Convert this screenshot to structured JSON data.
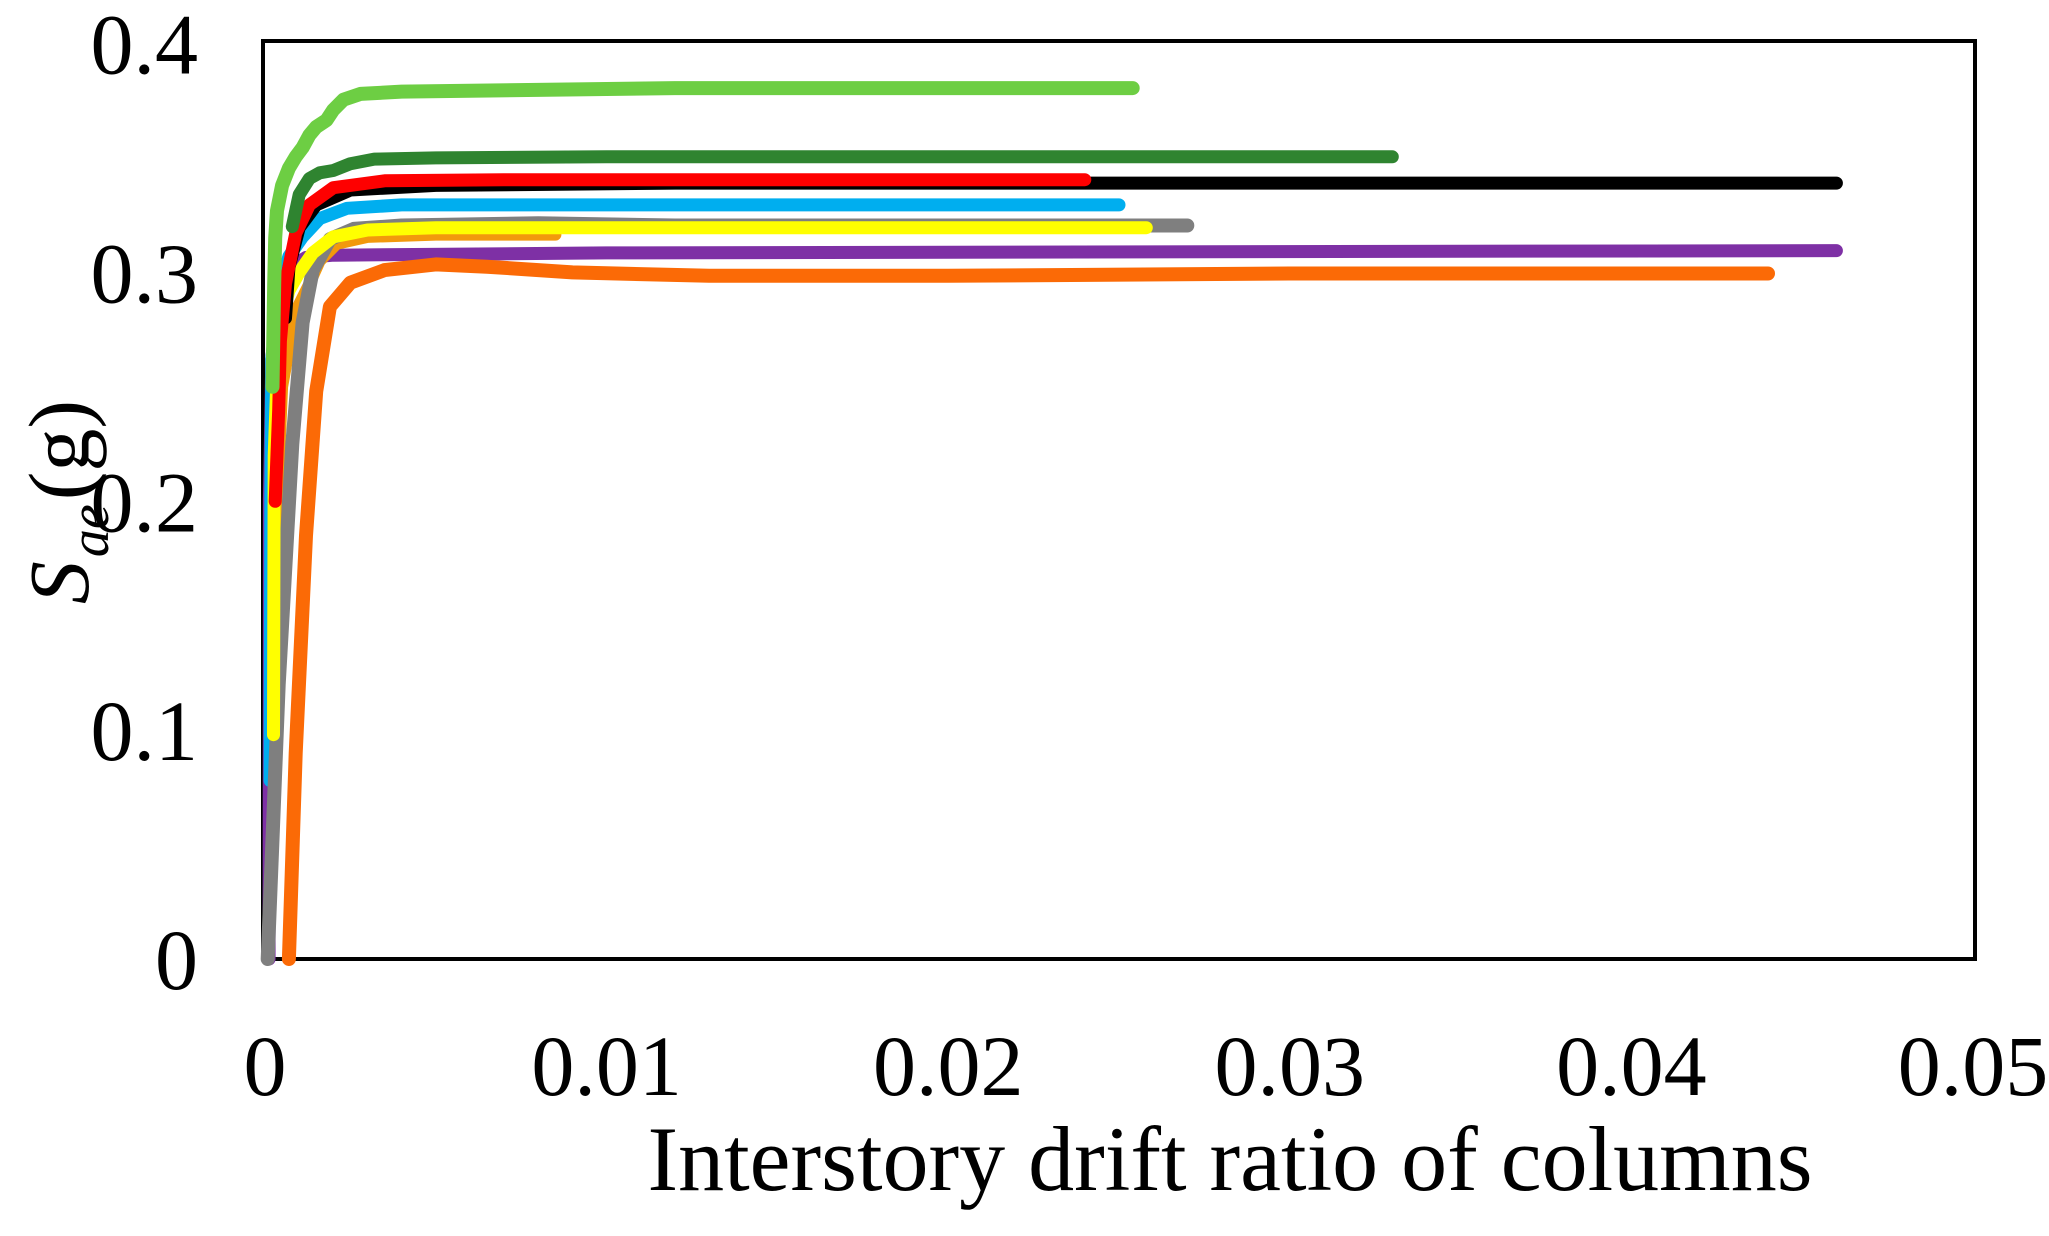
{
  "chart_data": {
    "type": "line",
    "title": "",
    "xlabel": "Interstory drift ratio of columns",
    "ylabel_main": "S",
    "ylabel_sub": "ae",
    "ylabel_unit": " (g)",
    "xlim": [
      0,
      0.05
    ],
    "ylim": [
      0,
      0.4
    ],
    "x_ticks": [
      "0",
      "0.01",
      "0.02",
      "0.03",
      "0.04",
      "0.05"
    ],
    "x_tick_values": [
      0,
      0.01,
      0.02,
      0.03,
      0.04,
      0.05
    ],
    "y_ticks": [
      "0",
      "0.1",
      "0.2",
      "0.3",
      "0.4"
    ],
    "y_tick_values": [
      0,
      0.1,
      0.2,
      0.3,
      0.4
    ],
    "grid": false,
    "legend": "none",
    "axis_color": "#000000",
    "series": [
      {
        "name": "purple",
        "color": "#7E30A5",
        "width": 13,
        "plateau": 0.309,
        "x_end": 0.046,
        "points": [
          [
            0.00012,
            0
          ],
          [
            0.00013,
            0.2
          ],
          [
            0.0002,
            0.262
          ],
          [
            0.0004,
            0.292
          ],
          [
            0.0007,
            0.302
          ],
          [
            0.0012,
            0.3065
          ],
          [
            0.002,
            0.3075
          ],
          [
            0.01,
            0.3085
          ],
          [
            0.046,
            0.3095
          ]
        ]
      },
      {
        "name": "cyan",
        "color": "#00AEEF",
        "width": 13,
        "plateau": 0.3295,
        "x_end": 0.025,
        "points": [
          [
            0.00015,
            0.078
          ],
          [
            0.00017,
            0.2
          ],
          [
            0.0002,
            0.262
          ],
          [
            0.0004,
            0.292
          ],
          [
            0.0007,
            0.307
          ],
          [
            0.0011,
            0.3155
          ],
          [
            0.0016,
            0.3235
          ],
          [
            0.0024,
            0.328
          ],
          [
            0.004,
            0.3295
          ],
          [
            0.025,
            0.3295
          ]
        ]
      },
      {
        "name": "gold",
        "color": "#F2990D",
        "width": 12,
        "plateau": 0.3165,
        "x_end": 0.0085,
        "points": [
          [
            0.0003,
            0.18
          ],
          [
            0.0005,
            0.25
          ],
          [
            0.0009,
            0.283
          ],
          [
            0.0013,
            0.295
          ],
          [
            0.0016,
            0.305
          ],
          [
            0.0021,
            0.3125
          ],
          [
            0.003,
            0.3155
          ],
          [
            0.005,
            0.3165
          ],
          [
            0.0085,
            0.3165
          ]
        ]
      },
      {
        "name": "gray",
        "color": "#7F7F7F",
        "width": 14,
        "plateau": 0.3205,
        "x_end": 0.027,
        "points": [
          [
            8e-05,
            0
          ],
          [
            0.0004,
            0.12
          ],
          [
            0.0008,
            0.225
          ],
          [
            0.0011,
            0.278
          ],
          [
            0.0014,
            0.301
          ],
          [
            0.0019,
            0.3145
          ],
          [
            0.0026,
            0.319
          ],
          [
            0.004,
            0.3205
          ],
          [
            0.008,
            0.3215
          ],
          [
            0.012,
            0.3205
          ],
          [
            0.027,
            0.3205
          ]
        ]
      },
      {
        "name": "yellow",
        "color": "#FFFF00",
        "width": 13,
        "plateau": 0.3195,
        "x_end": 0.0258,
        "points": [
          [
            0.00025,
            0.098
          ],
          [
            0.00027,
            0.22
          ],
          [
            0.0004,
            0.275
          ],
          [
            0.0007,
            0.292
          ],
          [
            0.001,
            0.3
          ],
          [
            0.0014,
            0.3085
          ],
          [
            0.002,
            0.3155
          ],
          [
            0.003,
            0.3185
          ],
          [
            0.005,
            0.3195
          ],
          [
            0.0258,
            0.3195
          ]
        ]
      },
      {
        "name": "black",
        "color": "#000000",
        "width": 13,
        "plateau": 0.339,
        "x_end": 0.046,
        "points": [
          [
            0.0006,
            0.28
          ],
          [
            0.0007,
            0.302
          ],
          [
            0.001,
            0.3195
          ],
          [
            0.0015,
            0.3295
          ],
          [
            0.0025,
            0.336
          ],
          [
            0.005,
            0.338
          ],
          [
            0.012,
            0.339
          ],
          [
            0.046,
            0.339
          ]
        ]
      },
      {
        "name": "red",
        "color": "#FE0000",
        "width": 13,
        "plateau": 0.3405,
        "x_end": 0.024,
        "points": [
          [
            0.0003,
            0.2
          ],
          [
            0.0004,
            0.24
          ],
          [
            0.00045,
            0.27
          ],
          [
            0.0006,
            0.295
          ],
          [
            0.0009,
            0.317
          ],
          [
            0.0013,
            0.3295
          ],
          [
            0.002,
            0.337
          ],
          [
            0.0035,
            0.34
          ],
          [
            0.007,
            0.3405
          ],
          [
            0.024,
            0.3405
          ]
        ]
      },
      {
        "name": "dark-green",
        "color": "#2F8430",
        "width": 13,
        "plateau": 0.3505,
        "x_end": 0.033,
        "points": [
          [
            0.0008,
            0.32
          ],
          [
            0.001,
            0.334
          ],
          [
            0.0013,
            0.341
          ],
          [
            0.0016,
            0.3435
          ],
          [
            0.002,
            0.3445
          ],
          [
            0.0025,
            0.3475
          ],
          [
            0.0032,
            0.3495
          ],
          [
            0.005,
            0.35
          ],
          [
            0.01,
            0.3505
          ],
          [
            0.033,
            0.3505
          ]
        ]
      },
      {
        "name": "light-green",
        "color": "#6DCE43",
        "width": 14,
        "plateau": 0.3805,
        "x_end": 0.0254,
        "points": [
          [
            0.00022,
            0.25
          ],
          [
            0.00027,
            0.295
          ],
          [
            0.0003,
            0.315
          ],
          [
            0.00035,
            0.327
          ],
          [
            0.0005,
            0.338
          ],
          [
            0.0007,
            0.3455
          ],
          [
            0.0009,
            0.3505
          ],
          [
            0.0011,
            0.3545
          ],
          [
            0.0013,
            0.36
          ],
          [
            0.0015,
            0.3635
          ],
          [
            0.0018,
            0.3665
          ],
          [
            0.002,
            0.371
          ],
          [
            0.0023,
            0.3755
          ],
          [
            0.0028,
            0.378
          ],
          [
            0.004,
            0.379
          ],
          [
            0.012,
            0.3805
          ],
          [
            0.0254,
            0.3805
          ]
        ]
      },
      {
        "name": "orange",
        "color": "#FB6A06",
        "width": 14,
        "plateau": 0.2995,
        "x_end": 0.044,
        "points": [
          [
            0.0007,
            0
          ],
          [
            0.0009,
            0.09
          ],
          [
            0.0012,
            0.185
          ],
          [
            0.0015,
            0.248
          ],
          [
            0.0019,
            0.285
          ],
          [
            0.0025,
            0.2955
          ],
          [
            0.0035,
            0.301
          ],
          [
            0.005,
            0.3035
          ],
          [
            0.0065,
            0.3025
          ],
          [
            0.009,
            0.3
          ],
          [
            0.013,
            0.2985
          ],
          [
            0.02,
            0.2985
          ],
          [
            0.03,
            0.2995
          ],
          [
            0.044,
            0.2995
          ]
        ]
      }
    ]
  }
}
